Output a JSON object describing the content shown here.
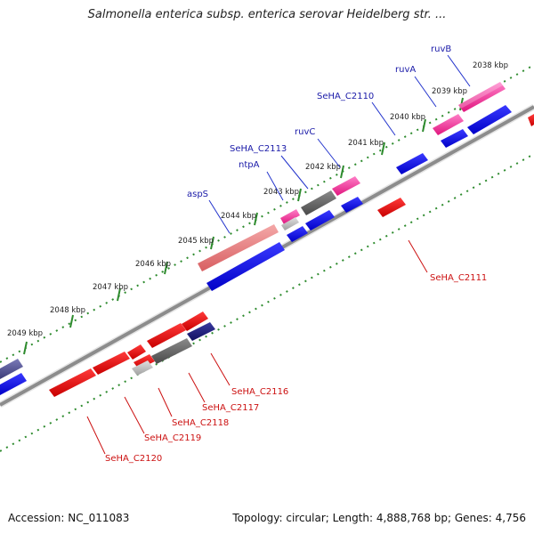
{
  "title": "Salmonella enterica subsp. enterica serovar Heidelberg str. ...",
  "footer": {
    "accession": "Accession: NC_011083",
    "summary": "Topology: circular; Length: 4,888,768 bp; Genes: 4,756"
  },
  "colors": {
    "backbone": "#8c8c8c",
    "ticks": "#2e8b2e",
    "top_label": "#1a1aa8",
    "bottom_label": "#cc1111",
    "leader_top": "#2233cc",
    "leader_bottom": "#cc1111"
  },
  "scale_labels": [
    "2038 kbp",
    "2039 kbp",
    "2040 kbp",
    "2041 kbp",
    "2042 kbp",
    "2043 kbp",
    "2044 kbp",
    "2045 kbp",
    "2046 kbp",
    "2047 kbp",
    "2048 kbp",
    "2049 kbp"
  ],
  "top_gene_labels": [
    "ruvB",
    "ruvA",
    "SeHA_C2110",
    "ruvC",
    "SeHA_C2113",
    "ntpA",
    "aspS"
  ],
  "bottom_gene_labels": [
    "SeHA_C2111",
    "SeHA_C2116",
    "SeHA_C2117",
    "SeHA_C2118",
    "SeHA_C2119",
    "SeHA_C2120"
  ]
}
